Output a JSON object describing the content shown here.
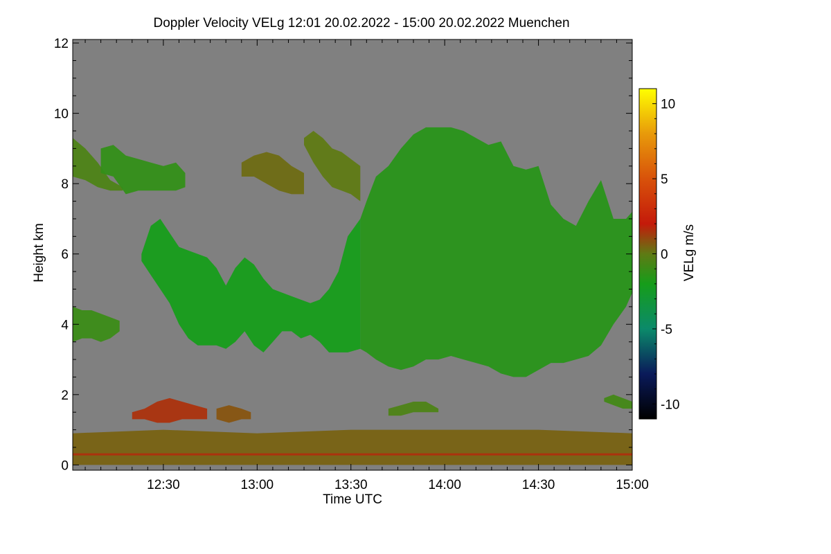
{
  "chart_data": {
    "type": "heatmap",
    "title": "Doppler Velocity VELg   12:01 20.02.2022 - 15:00 20.02.2022 Muenchen",
    "xlabel": "Time UTC",
    "ylabel": "Height km",
    "colorbar_label": "VELg m/s",
    "x_range_minutes": [
      721,
      900
    ],
    "y_range_km": [
      -0.15,
      12.1
    ],
    "x_ticks": [
      {
        "minute": 750,
        "label": "12:30"
      },
      {
        "minute": 780,
        "label": "13:00"
      },
      {
        "minute": 810,
        "label": "13:30"
      },
      {
        "minute": 840,
        "label": "14:00"
      },
      {
        "minute": 870,
        "label": "14:30"
      },
      {
        "minute": 900,
        "label": "15:00"
      }
    ],
    "y_ticks": [
      {
        "value": 0,
        "label": "0"
      },
      {
        "value": 2,
        "label": "2"
      },
      {
        "value": 4,
        "label": "4"
      },
      {
        "value": 6,
        "label": "6"
      },
      {
        "value": 8,
        "label": "8"
      },
      {
        "value": 10,
        "label": "10"
      },
      {
        "value": 12,
        "label": "12"
      }
    ],
    "colorbar_range": [
      -11,
      11
    ],
    "colorbar_ticks": [
      {
        "value": 10,
        "label": "10"
      },
      {
        "value": 5,
        "label": "5"
      },
      {
        "value": 0,
        "label": "0"
      },
      {
        "value": -5,
        "label": "-5"
      },
      {
        "value": -10,
        "label": "-10"
      }
    ],
    "colorbar_stops": [
      {
        "value": -11,
        "color": "#000000"
      },
      {
        "value": -8,
        "color": "#0a1a5a"
      },
      {
        "value": -5,
        "color": "#0b8a6a"
      },
      {
        "value": -2,
        "color": "#169d1a"
      },
      {
        "value": 0,
        "color": "#5f7a14"
      },
      {
        "value": 2,
        "color": "#c41a0a"
      },
      {
        "value": 5,
        "color": "#d8520a"
      },
      {
        "value": 8,
        "color": "#e89a0a"
      },
      {
        "value": 11,
        "color": "#ffff00"
      }
    ],
    "background_color": "#808080",
    "layers": [
      {
        "name": "main-cloud-body",
        "velocity": -1.5,
        "x": [
          813,
          815,
          818,
          822,
          826,
          830,
          834,
          838,
          842,
          846,
          850,
          854,
          858,
          862,
          866,
          870,
          874,
          878,
          882,
          886,
          890,
          894,
          898,
          900
        ],
        "top": [
          7.0,
          7.5,
          8.2,
          8.5,
          9.0,
          9.4,
          9.6,
          9.6,
          9.6,
          9.5,
          9.3,
          9.1,
          9.2,
          8.5,
          8.4,
          8.5,
          7.4,
          7.0,
          6.8,
          7.5,
          8.1,
          7.0,
          7.0,
          7.2
        ],
        "bottom": [
          3.3,
          3.2,
          3.0,
          2.8,
          2.7,
          2.8,
          3.0,
          3.0,
          3.1,
          3.0,
          2.9,
          2.8,
          2.6,
          2.5,
          2.5,
          2.7,
          2.9,
          2.9,
          3.0,
          3.1,
          3.4,
          4.0,
          4.5,
          4.9
        ]
      },
      {
        "name": "mid-cloud-west",
        "velocity": -2.0,
        "x": [
          743,
          746,
          749,
          752,
          755,
          758,
          761,
          764,
          767,
          770,
          773,
          776,
          779,
          782,
          785,
          788,
          791,
          794,
          797,
          800,
          803,
          806,
          809,
          813
        ],
        "top": [
          6.0,
          6.8,
          7.0,
          6.6,
          6.2,
          6.1,
          6.0,
          5.9,
          5.6,
          5.1,
          5.6,
          5.9,
          5.7,
          5.3,
          5.0,
          4.9,
          4.8,
          4.7,
          4.6,
          4.7,
          5.0,
          5.5,
          6.5,
          7.0
        ],
        "bottom": [
          5.8,
          5.4,
          5.0,
          4.6,
          4.0,
          3.6,
          3.4,
          3.4,
          3.4,
          3.3,
          3.5,
          3.8,
          3.4,
          3.2,
          3.5,
          3.8,
          3.8,
          3.6,
          3.7,
          3.5,
          3.2,
          3.2,
          3.2,
          3.3
        ]
      },
      {
        "name": "upper-cloud-east",
        "velocity": 0.0,
        "x": [
          795,
          798,
          801,
          804,
          807,
          810,
          813
        ],
        "top": [
          9.3,
          9.5,
          9.3,
          9.0,
          8.9,
          8.7,
          8.5
        ],
        "bottom": [
          9.1,
          8.6,
          8.2,
          7.9,
          7.8,
          7.7,
          7.5
        ]
      },
      {
        "name": "upper-cloud-west-a",
        "velocity": -0.5,
        "x": [
          721,
          725,
          729,
          733,
          737
        ],
        "top": [
          9.3,
          9.0,
          8.6,
          8.1,
          7.9
        ],
        "bottom": [
          8.2,
          8.1,
          7.9,
          7.8,
          7.8
        ]
      },
      {
        "name": "upper-cloud-west-b",
        "velocity": -1.2,
        "x": [
          730,
          734,
          738,
          742,
          746,
          750,
          754,
          757
        ],
        "top": [
          9.0,
          9.1,
          8.8,
          8.7,
          8.6,
          8.5,
          8.6,
          8.3
        ],
        "bottom": [
          8.3,
          8.2,
          7.7,
          7.8,
          7.8,
          7.8,
          7.8,
          7.9
        ]
      },
      {
        "name": "upper-cloud-mid",
        "velocity": 0.3,
        "x": [
          775,
          779,
          783,
          787,
          791,
          795
        ],
        "top": [
          8.6,
          8.8,
          8.9,
          8.8,
          8.5,
          8.3
        ],
        "bottom": [
          8.2,
          8.2,
          8.0,
          7.8,
          7.7,
          7.7
        ]
      },
      {
        "name": "left-cloud-4km",
        "velocity": -1.0,
        "x": [
          721,
          724,
          727,
          730,
          733,
          736
        ],
        "top": [
          4.5,
          4.4,
          4.4,
          4.3,
          4.2,
          4.1
        ],
        "bottom": [
          3.5,
          3.6,
          3.6,
          3.5,
          3.6,
          3.8
        ]
      },
      {
        "name": "low-layer-1.5km-a",
        "velocity": 1.5,
        "x": [
          740,
          744,
          748,
          752,
          756,
          760,
          764
        ],
        "top": [
          1.5,
          1.6,
          1.8,
          1.9,
          1.8,
          1.7,
          1.6
        ],
        "bottom": [
          1.3,
          1.3,
          1.2,
          1.2,
          1.3,
          1.3,
          1.3
        ]
      },
      {
        "name": "low-layer-1.5km-b",
        "velocity": 0.8,
        "x": [
          767,
          771,
          775,
          778
        ],
        "top": [
          1.6,
          1.7,
          1.6,
          1.5
        ],
        "bottom": [
          1.3,
          1.2,
          1.3,
          1.3
        ]
      },
      {
        "name": "low-layer-1.5km-c",
        "velocity": -0.5,
        "x": [
          822,
          826,
          830,
          834,
          838
        ],
        "top": [
          1.6,
          1.7,
          1.8,
          1.8,
          1.6
        ],
        "bottom": [
          1.4,
          1.4,
          1.5,
          1.5,
          1.5
        ]
      },
      {
        "name": "low-layer-1.7km-east",
        "velocity": -0.8,
        "x": [
          891,
          894,
          897,
          900
        ],
        "top": [
          1.9,
          2.0,
          1.9,
          1.8
        ],
        "bottom": [
          1.8,
          1.7,
          1.6,
          1.6
        ]
      },
      {
        "name": "boundary-layer",
        "velocity": 0.5,
        "x": [
          721,
          750,
          780,
          810,
          840,
          870,
          900
        ],
        "top": [
          0.9,
          1.0,
          0.9,
          1.0,
          1.0,
          1.0,
          0.9
        ],
        "bottom": [
          0.0,
          0.0,
          0.0,
          0.0,
          0.0,
          0.0,
          0.0
        ]
      }
    ],
    "horizontal_lines": [
      {
        "height_km": 0.3,
        "velocity": 1.5
      }
    ]
  }
}
